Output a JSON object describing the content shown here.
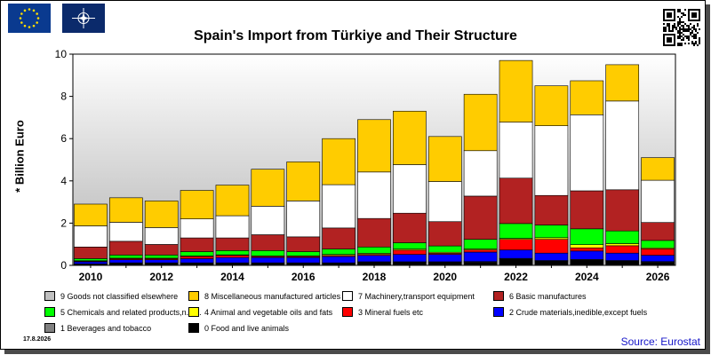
{
  "flags": {
    "left": "eu-flag-icon",
    "right": "nato-flag-icon"
  },
  "qr": "qr-code-icon",
  "footer": {
    "date": "17.8.2026",
    "source": "Source: Eurostat"
  },
  "chart_data": {
    "type": "bar",
    "stacked": true,
    "title": "Spain's Import from Türkiye and Their Structure",
    "ylabel": "* Billion Euro",
    "xlabel": "",
    "ylim": [
      0,
      10
    ],
    "yticks": [
      0,
      2,
      4,
      6,
      8,
      10
    ],
    "grid": false,
    "legend_position": "bottom",
    "categories": [
      "2010",
      "2011",
      "2012",
      "2013",
      "2014",
      "2015",
      "2016",
      "2017",
      "2018",
      "2019",
      "2020",
      "2021",
      "2022",
      "2023",
      "2024",
      "2025",
      "2026"
    ],
    "xtick_labels": [
      "2010",
      "2012",
      "2014",
      "2016",
      "2018",
      "2020",
      "2022",
      "2024",
      "2026"
    ],
    "series": [
      {
        "name": "0 Food and live animals",
        "color": "#000000",
        "values": [
          0.05,
          0.1,
          0.1,
          0.1,
          0.1,
          0.1,
          0.1,
          0.1,
          0.15,
          0.15,
          0.15,
          0.15,
          0.3,
          0.2,
          0.25,
          0.2,
          0.15
        ]
      },
      {
        "name": "1 Beverages and tobacco",
        "color": "#808080",
        "values": [
          0.02,
          0.02,
          0.02,
          0.02,
          0.02,
          0.02,
          0.02,
          0.02,
          0.02,
          0.02,
          0.02,
          0.03,
          0.03,
          0.03,
          0.03,
          0.03,
          0.03
        ]
      },
      {
        "name": "2 Crude materials,inedible,except fuels",
        "color": "#0000ff",
        "values": [
          0.1,
          0.15,
          0.15,
          0.2,
          0.25,
          0.25,
          0.25,
          0.3,
          0.3,
          0.35,
          0.35,
          0.45,
          0.4,
          0.35,
          0.4,
          0.35,
          0.3
        ]
      },
      {
        "name": "3 Mineral fuels etc",
        "color": "#ff0000",
        "values": [
          0.03,
          0.05,
          0.05,
          0.1,
          0.1,
          0.05,
          0.05,
          0.05,
          0.05,
          0.2,
          0.05,
          0.1,
          0.5,
          0.65,
          0.15,
          0.35,
          0.3
        ]
      },
      {
        "name": "4 Animal and vegetable oils and fats",
        "color": "#ffff00",
        "values": [
          0.02,
          0.02,
          0.02,
          0.03,
          0.03,
          0.03,
          0.03,
          0.05,
          0.05,
          0.05,
          0.05,
          0.05,
          0.05,
          0.08,
          0.15,
          0.1,
          0.05
        ]
      },
      {
        "name": "5 Chemicals and related products,n.e.s.",
        "color": "#00ff00",
        "values": [
          0.1,
          0.15,
          0.15,
          0.2,
          0.2,
          0.25,
          0.2,
          0.25,
          0.3,
          0.3,
          0.3,
          0.45,
          0.7,
          0.6,
          0.75,
          0.6,
          0.35
        ]
      },
      {
        "name": "6 Basic manufactures",
        "color": "#b22222",
        "values": [
          0.55,
          0.65,
          0.5,
          0.65,
          0.6,
          0.75,
          0.7,
          1.0,
          1.35,
          1.4,
          1.15,
          2.05,
          2.15,
          1.4,
          1.8,
          1.95,
          0.85
        ]
      },
      {
        "name": "7 Machinery,transport equipment",
        "color": "#ffffff",
        "values": [
          1.0,
          0.9,
          0.8,
          0.9,
          1.05,
          1.35,
          1.7,
          2.05,
          2.2,
          2.3,
          1.9,
          2.15,
          2.65,
          3.3,
          3.6,
          4.2,
          2.0
        ]
      },
      {
        "name": "8 Miscellaneous manufactured articles",
        "color": "#ffcc00",
        "values": [
          1.03,
          1.16,
          1.26,
          1.35,
          1.45,
          1.75,
          1.85,
          2.18,
          2.48,
          2.53,
          2.13,
          2.67,
          2.92,
          1.89,
          1.61,
          1.72,
          1.07
        ]
      },
      {
        "name": "9 Goods not classified elsewhere",
        "color": "#c0c0c0",
        "values": [
          0,
          0,
          0,
          0,
          0,
          0,
          0,
          0,
          0,
          0,
          0,
          0,
          0,
          0,
          0,
          0,
          0
        ]
      }
    ]
  },
  "legend_order": [
    9,
    8,
    7,
    6,
    5,
    4,
    3,
    2,
    1,
    0
  ]
}
